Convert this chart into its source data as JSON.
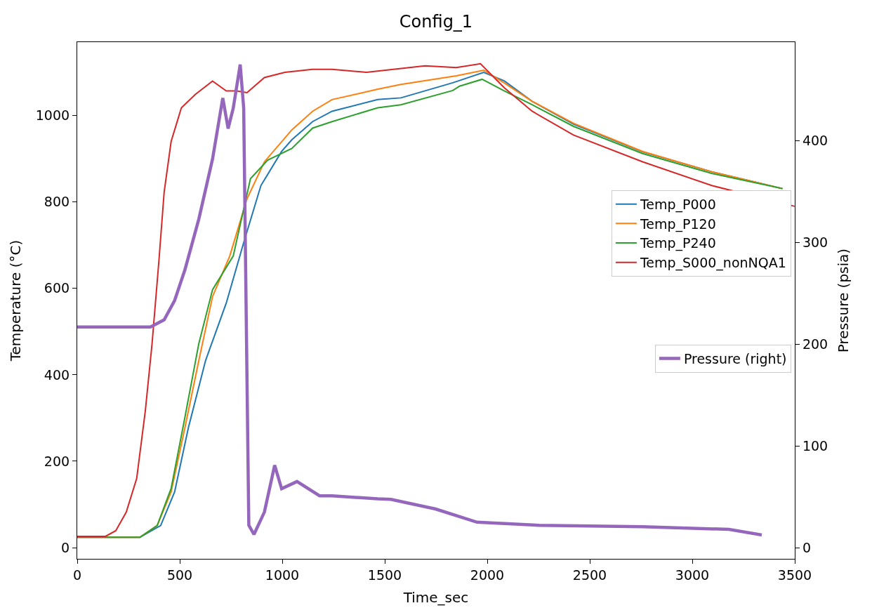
{
  "chart_data": {
    "type": "line",
    "title": "Config_1",
    "xlabel": "Time_sec",
    "ylabel": "Temperature (°C)",
    "y2label": "Pressure (psia)",
    "xlim": [
      0,
      3500
    ],
    "xticks": [
      0,
      500,
      1000,
      1500,
      2000,
      2500,
      3000,
      3500
    ],
    "ylim": [
      -26,
      1170
    ],
    "yticks": [
      0,
      200,
      400,
      600,
      800,
      1000
    ],
    "y2lim": [
      -11,
      497
    ],
    "y2ticks": [
      0,
      100,
      200,
      300,
      400
    ],
    "legend": "right",
    "marker": "none",
    "line_style": "solid",
    "series": [
      {
        "name": "Temp_P000",
        "color": "#1f77b4",
        "x": [
          0,
          306,
          407,
          475,
          542,
          626,
          727,
          812,
          896,
          997,
          1047,
          1148,
          1243,
          1466,
          1579,
          1832,
          1983,
          2084,
          2219,
          2421,
          2758,
          3095,
          3440
        ],
        "values": [
          24,
          24,
          51,
          129,
          277,
          433,
          566,
          706,
          838,
          917,
          944,
          986,
          1010,
          1037,
          1041,
          1076,
          1100,
          1080,
          1033,
          980,
          916,
          870,
          831
        ]
      },
      {
        "name": "Temp_P120",
        "color": "#ff7f0e",
        "x": [
          0,
          306,
          390,
          458,
          525,
          593,
          660,
          744,
          828,
          913,
          1047,
          1148,
          1243,
          1466,
          1579,
          1849,
          1983,
          2084,
          2219,
          2421,
          2758,
          3095,
          3440
        ],
        "values": [
          24,
          24,
          51,
          129,
          277,
          433,
          581,
          675,
          807,
          893,
          967,
          1010,
          1037,
          1061,
          1072,
          1092,
          1105,
          1075,
          1033,
          982,
          917,
          870,
          831
        ]
      },
      {
        "name": "Temp_P240",
        "color": "#2ca02c",
        "x": [
          0,
          306,
          390,
          458,
          525,
          593,
          660,
          761,
          845,
          929,
          1047,
          1148,
          1243,
          1466,
          1579,
          1832,
          1865,
          1975,
          2084,
          2219,
          2421,
          2758,
          3095,
          3440
        ],
        "values": [
          24,
          24,
          51,
          137,
          301,
          472,
          597,
          675,
          854,
          897,
          924,
          971,
          986,
          1018,
          1025,
          1058,
          1068,
          1084,
          1057,
          1025,
          975,
          912,
          866,
          831
        ]
      },
      {
        "name": "Temp_S000_nonNQA1",
        "color": "#d62728",
        "x": [
          0,
          138,
          188,
          239,
          290,
          332,
          365,
          399,
          424,
          458,
          508,
          576,
          660,
          727,
          778,
          828,
          913,
          1013,
          1148,
          1243,
          1411,
          1697,
          1849,
          1967,
          2084,
          2219,
          2421,
          2758,
          3095,
          3499
        ],
        "values": [
          26,
          26,
          39,
          82,
          160,
          316,
          472,
          667,
          823,
          940,
          1018,
          1049,
          1080,
          1057,
          1057,
          1053,
          1088,
          1100,
          1107,
          1107,
          1100,
          1115,
          1111,
          1120,
          1064,
          1010,
          955,
          893,
          838,
          790
        ]
      },
      {
        "name": "Pressure (right)",
        "color": "#9467bd",
        "axis": "y2",
        "x": [
          0,
          357,
          424,
          475,
          525,
          593,
          660,
          710,
          736,
          761,
          795,
          812,
          828,
          837,
          862,
          913,
          963,
          997,
          1072,
          1182,
          1243,
          1466,
          1530,
          1748,
          1950,
          2253,
          2758,
          3179,
          3339
        ],
        "values": [
          217,
          217,
          224,
          243,
          273,
          323,
          382,
          442,
          412,
          432,
          475,
          432,
          167,
          22,
          13,
          35,
          81,
          58,
          65,
          51,
          51,
          48,
          47.5,
          38,
          25,
          22,
          20.5,
          18,
          12.5
        ]
      }
    ]
  }
}
